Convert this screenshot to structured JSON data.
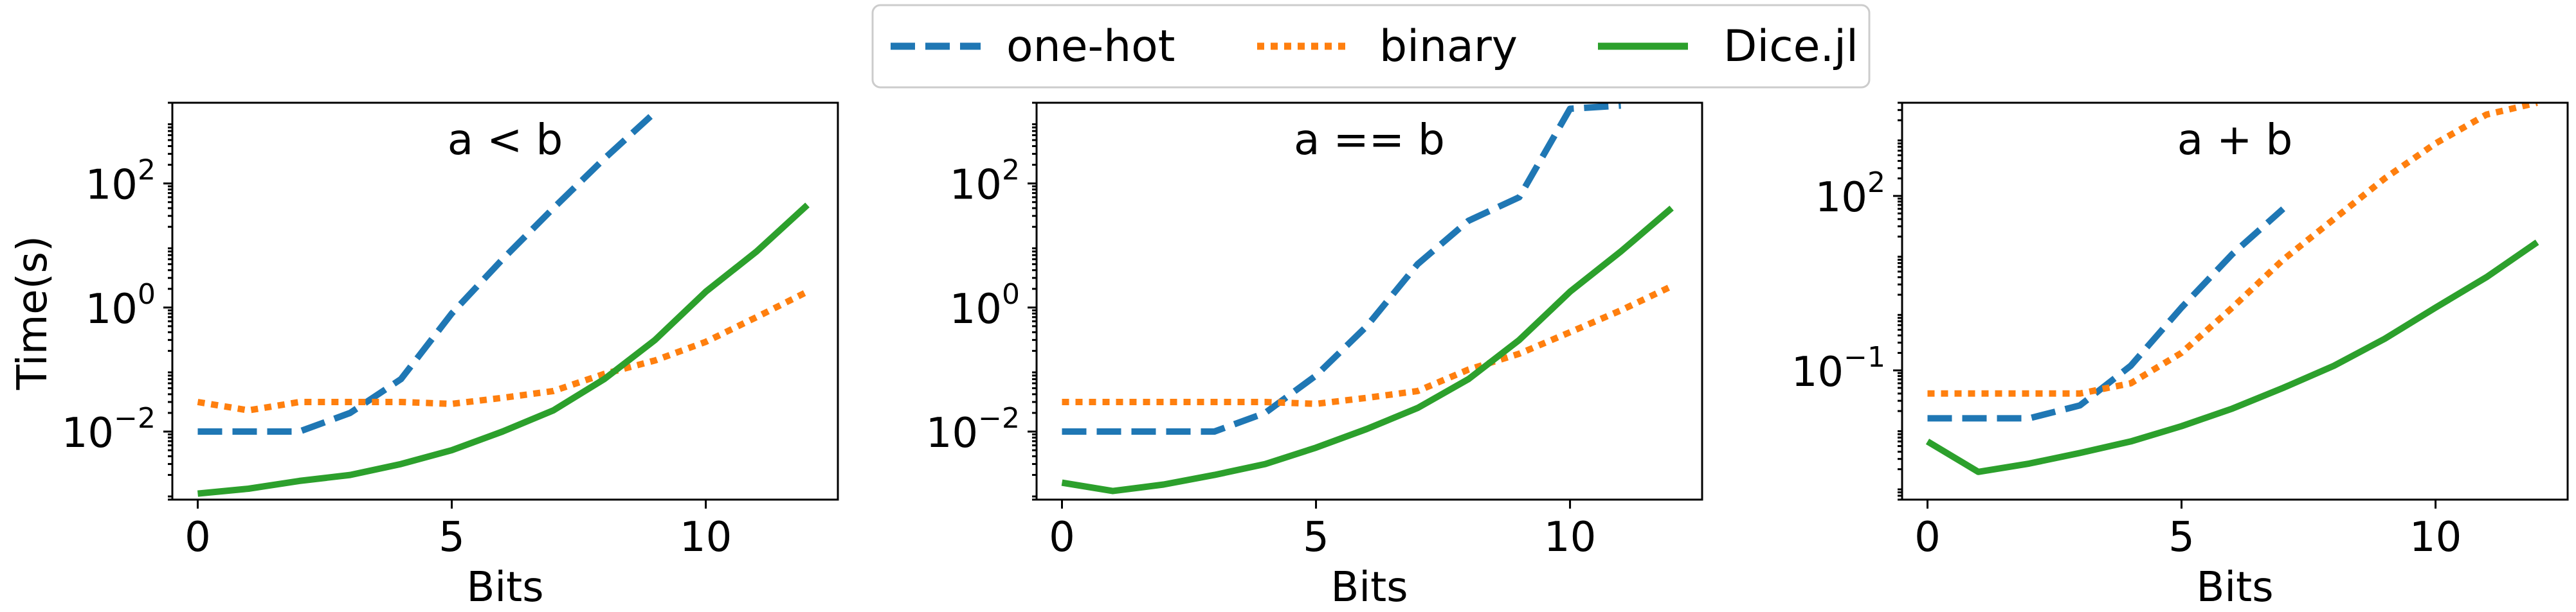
{
  "legend": [
    {
      "name": "one-hot",
      "style": "dashed",
      "color": "#1f77b4"
    },
    {
      "name": "binary",
      "style": "dotted",
      "color": "#ff7f0e"
    },
    {
      "name": "Dice.jl",
      "style": "solid",
      "color": "#2ca02c"
    }
  ],
  "shared": {
    "ylabel": "Time(s)",
    "xlabel": "Bits",
    "x_ticks": [
      0,
      5,
      10
    ]
  },
  "chart_data": [
    {
      "type": "line",
      "title": "a < b",
      "xlabel": "Bits",
      "ylabel": "Time(s)",
      "yscale": "log",
      "xlim": [
        -0.5,
        12.6
      ],
      "ylim": [
        0.0008,
        2000
      ],
      "y_ticks": [
        {
          "value": 0.01,
          "base": "10",
          "exp": "−2"
        },
        {
          "value": 1,
          "base": "10",
          "exp": "0"
        },
        {
          "value": 100,
          "base": "10",
          "exp": "2"
        }
      ],
      "series": [
        {
          "name": "one-hot",
          "x": [
            0,
            1,
            2,
            3,
            4,
            5,
            6,
            7,
            8,
            9
          ],
          "y": [
            0.01,
            0.01,
            0.01,
            0.02,
            0.07,
            0.8,
            6,
            40,
            250,
            1400
          ]
        },
        {
          "name": "binary",
          "x": [
            0,
            1,
            2,
            3,
            4,
            5,
            6,
            7,
            8,
            9,
            10,
            11,
            12
          ],
          "y": [
            0.03,
            0.022,
            0.03,
            0.03,
            0.03,
            0.028,
            0.035,
            0.045,
            0.085,
            0.14,
            0.28,
            0.7,
            1.8
          ]
        },
        {
          "name": "Dice.jl",
          "x": [
            0,
            1,
            2,
            3,
            4,
            5,
            6,
            7,
            8,
            9,
            10,
            11,
            12
          ],
          "y": [
            0.001,
            0.0012,
            0.0016,
            0.002,
            0.003,
            0.005,
            0.01,
            0.022,
            0.07,
            0.3,
            1.8,
            8,
            45
          ]
        }
      ]
    },
    {
      "type": "line",
      "title": "a == b",
      "xlabel": "Bits",
      "ylabel": "",
      "yscale": "log",
      "xlim": [
        -0.5,
        12.6
      ],
      "ylim": [
        0.0008,
        2000
      ],
      "y_ticks": [
        {
          "value": 0.01,
          "base": "10",
          "exp": "−2"
        },
        {
          "value": 1,
          "base": "10",
          "exp": "0"
        },
        {
          "value": 100,
          "base": "10",
          "exp": "2"
        }
      ],
      "series": [
        {
          "name": "one-hot",
          "x": [
            0,
            1,
            2,
            3,
            4,
            5,
            6,
            7,
            8,
            9,
            10,
            11
          ],
          "y": [
            0.01,
            0.01,
            0.01,
            0.01,
            0.02,
            0.08,
            0.5,
            5,
            25,
            60,
            1600,
            1800
          ]
        },
        {
          "name": "binary",
          "x": [
            0,
            1,
            2,
            3,
            4,
            5,
            6,
            7,
            8,
            9,
            10,
            11,
            12
          ],
          "y": [
            0.03,
            0.03,
            0.03,
            0.03,
            0.03,
            0.028,
            0.035,
            0.045,
            0.1,
            0.18,
            0.4,
            0.9,
            2.2
          ]
        },
        {
          "name": "Dice.jl",
          "x": [
            0,
            1,
            2,
            3,
            4,
            5,
            6,
            7,
            8,
            9,
            10,
            11,
            12
          ],
          "y": [
            0.0015,
            0.0011,
            0.0014,
            0.002,
            0.003,
            0.0055,
            0.011,
            0.024,
            0.07,
            0.3,
            1.8,
            8,
            40
          ]
        }
      ]
    },
    {
      "type": "line",
      "title": "a + b",
      "xlabel": "Bits",
      "ylabel": "",
      "yscale": "log",
      "xlim": [
        -0.5,
        12.6
      ],
      "ylim": [
        0.0006,
        4000
      ],
      "y_ticks": [
        {
          "value": 0.1,
          "base": "10",
          "exp": "−1"
        },
        {
          "value": 100,
          "base": "10",
          "exp": "2"
        }
      ],
      "series": [
        {
          "name": "one-hot",
          "x": [
            0,
            1,
            2,
            3,
            4,
            5,
            6,
            7
          ],
          "y": [
            0.015,
            0.015,
            0.015,
            0.025,
            0.12,
            1.2,
            10,
            60
          ]
        },
        {
          "name": "binary",
          "x": [
            0,
            1,
            2,
            3,
            4,
            5,
            6,
            7,
            8,
            9,
            10,
            11,
            12
          ],
          "y": [
            0.04,
            0.04,
            0.04,
            0.04,
            0.06,
            0.2,
            1.2,
            8,
            40,
            200,
            800,
            2500,
            4000
          ]
        },
        {
          "name": "Dice.jl",
          "x": [
            0,
            1,
            2,
            3,
            4,
            5,
            6,
            7,
            8,
            9,
            10,
            11,
            12
          ],
          "y": [
            0.006,
            0.0018,
            0.0025,
            0.0038,
            0.006,
            0.011,
            0.022,
            0.05,
            0.12,
            0.35,
            1.2,
            4,
            16
          ]
        }
      ]
    }
  ]
}
